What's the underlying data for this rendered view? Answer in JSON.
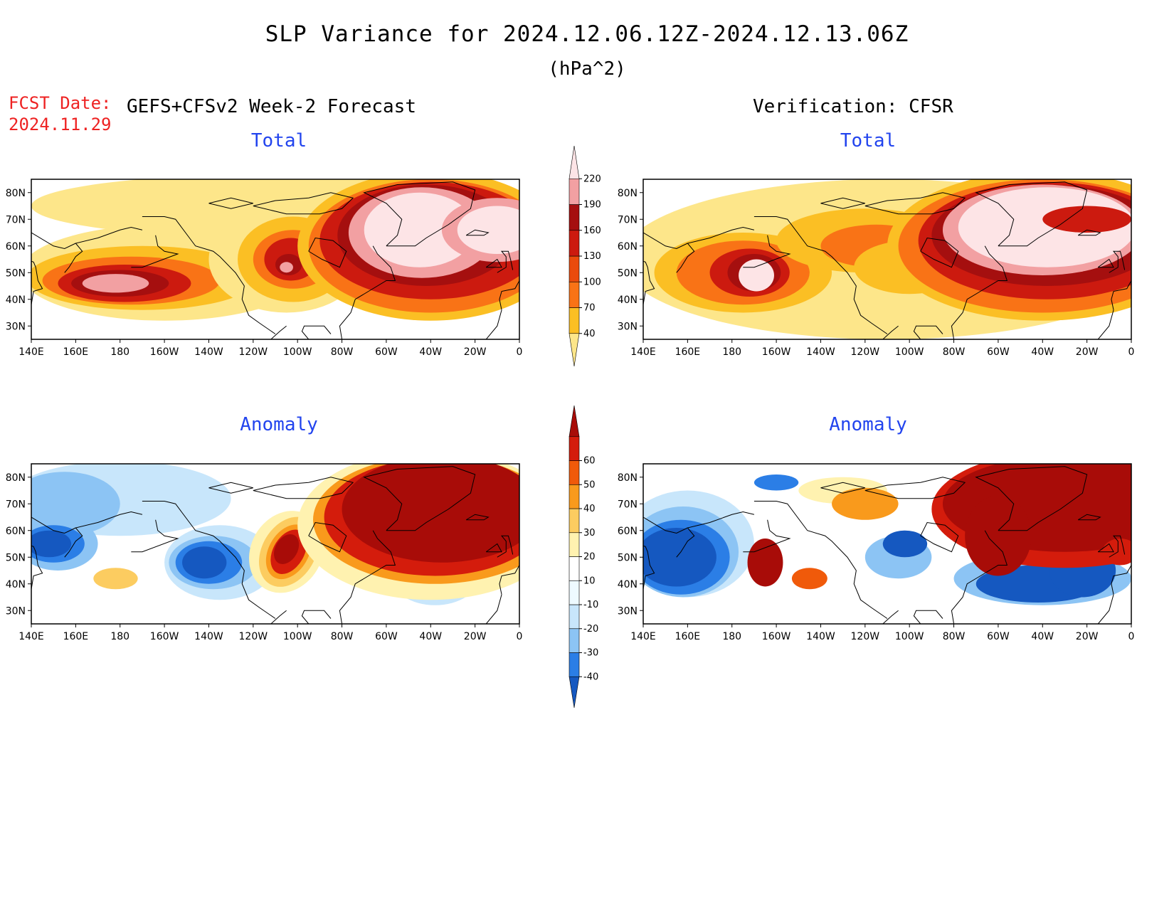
{
  "header": {
    "title": "SLP Variance for 2024.12.06.12Z-2024.12.13.06Z",
    "units": "(hPa^2)",
    "fcst_label": "FCST Date:",
    "fcst_date": "2024.11.29",
    "left_heading": "GEFS+CFSv2 Week-2 Forecast",
    "right_heading": "Verification: CFSR"
  },
  "panels": {
    "forecast_total": {
      "title": "Total"
    },
    "verif_total": {
      "title": "Total"
    },
    "forecast_anomaly": {
      "title": "Anomaly"
    },
    "verif_anomaly": {
      "title": "Anomaly"
    }
  },
  "axes": {
    "lon_ticks": [
      "140E",
      "160E",
      "180",
      "160W",
      "140W",
      "120W",
      "100W",
      "80W",
      "60W",
      "40W",
      "20W",
      "0"
    ],
    "lat_ticks": [
      "80N",
      "70N",
      "60N",
      "50N",
      "40N",
      "30N"
    ],
    "lon_range": [
      140,
      360
    ],
    "lat_range": [
      25,
      85
    ]
  },
  "colorbars": {
    "total": {
      "levels": [
        "40",
        "70",
        "100",
        "130",
        "160",
        "190",
        "220"
      ],
      "colors": [
        "#fde68a",
        "#fbbf24",
        "#f97316",
        "#ea4b0c",
        "#cc1a0f",
        "#a50f0f",
        "#f2a0a2",
        "#fde4e6"
      ]
    },
    "anomaly": {
      "levels": [
        "-40",
        "-30",
        "-20",
        "-10",
        "10",
        "20",
        "30",
        "40",
        "50",
        "60"
      ],
      "colors": [
        "#1558c0",
        "#2b7ee6",
        "#8cc4f4",
        "#c8e6fb",
        "#eefaff",
        "#ffffff",
        "#fff2b0",
        "#fccc60",
        "#f99a1c",
        "#f05a0a",
        "#d41c0c",
        "#a80c08"
      ]
    }
  }
}
